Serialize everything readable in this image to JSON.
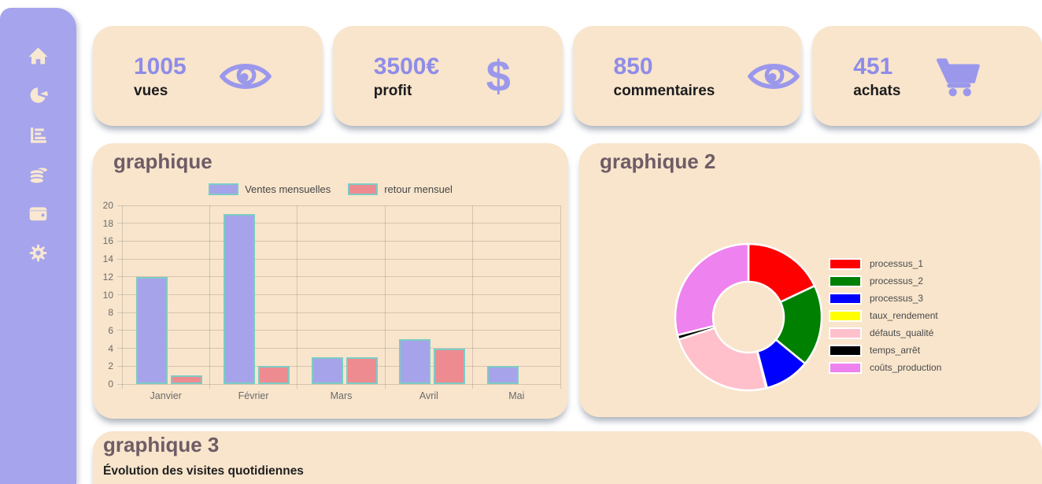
{
  "colors": {
    "sidebar_bg": "#a6a4ec",
    "sidebar_icon": "#f8e8d1",
    "card_bg": "#f8e5cc",
    "accent_purple": "#8f8ce8",
    "icon_purple": "#9b98ec",
    "stat_label_text": "#1c1c1e",
    "chart_title_text": "#6e5c66",
    "bar_fill_blue": "#a6a3ea",
    "bar_fill_red": "#ee8b90",
    "bar_border_teal": "#7cccc4",
    "axis_text": "#6b6b6b",
    "legend_text": "#464646"
  },
  "sidebar": {
    "items": [
      {
        "id": "home",
        "icon": "home-icon"
      },
      {
        "id": "pie-chart",
        "icon": "pie-chart-icon"
      },
      {
        "id": "bar-chart",
        "icon": "bar-chart-icon"
      },
      {
        "id": "coins",
        "icon": "coins-icon"
      },
      {
        "id": "wallet",
        "icon": "wallet-icon"
      },
      {
        "id": "settings",
        "icon": "gear-icon"
      }
    ]
  },
  "stat_cards": [
    {
      "value": "1005",
      "label": "vues",
      "icon": "eye-icon"
    },
    {
      "value": "3500€",
      "label": "profit",
      "icon": "dollar-icon"
    },
    {
      "value": "850",
      "label": "commentaires",
      "icon": "eye-icon"
    },
    {
      "value": "451",
      "label": "achats",
      "icon": "cart-icon"
    }
  ],
  "chart_data": [
    {
      "type": "bar",
      "title": "graphique",
      "categories": [
        "Janvier",
        "Février",
        "Mars",
        "Avril",
        "Mai"
      ],
      "series": [
        {
          "name": "Ventes mensuelles",
          "color": "#a6a3ea",
          "border": "#7cccc4",
          "values": [
            12,
            19,
            3,
            5,
            2
          ]
        },
        {
          "name": "retour mensuel",
          "color": "#ee8b90",
          "border": "#7cccc4",
          "values": [
            1,
            2,
            3,
            4,
            0
          ]
        }
      ],
      "ylim": [
        0,
        20
      ],
      "ytick_step": 2,
      "grid": true,
      "legend_position": "top"
    },
    {
      "type": "pie",
      "title": "graphique 2",
      "donut": true,
      "labels": [
        "processus_1",
        "processus_2",
        "processus_3",
        "taux_rendement",
        "défauts_qualité",
        "temps_arrêt",
        "coûts_production"
      ],
      "values": [
        18,
        18,
        10,
        0.2,
        24,
        1,
        29
      ],
      "values_unit": "percent (estimated from slice angles)",
      "colors": [
        "#ff0000",
        "#008000",
        "#0000ff",
        "#ffff00",
        "#ffc0cb",
        "#000000",
        "#ee82ee"
      ],
      "legend_position": "right"
    }
  ],
  "graphique3": {
    "title": "graphique 3",
    "subtitle": "Évolution des visites quotidiennes"
  }
}
